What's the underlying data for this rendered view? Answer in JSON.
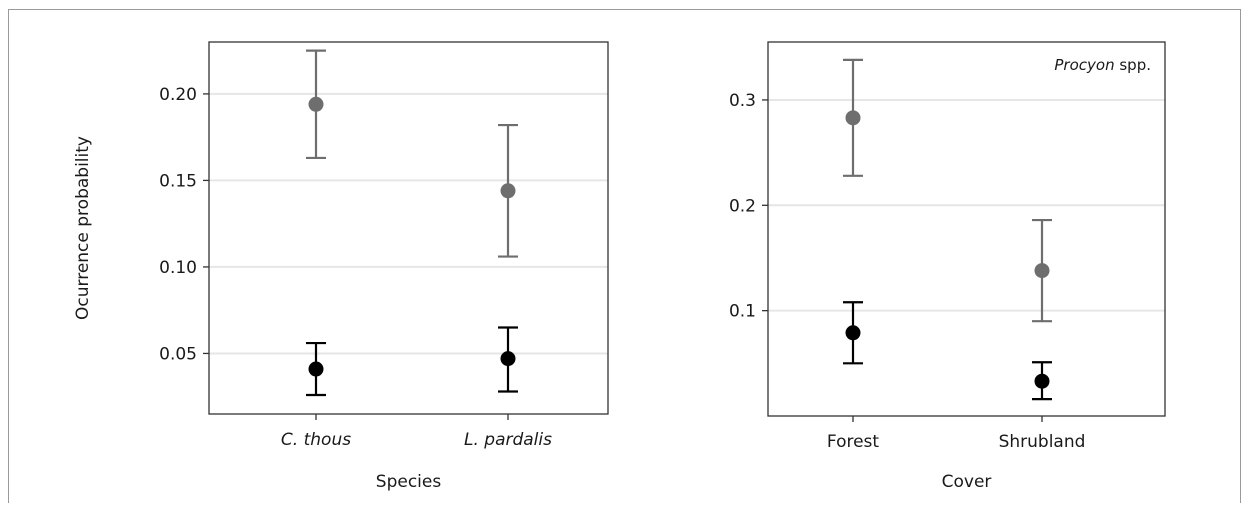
{
  "chart_data": [
    {
      "type": "scatter",
      "subtype": "point-with-error-bars",
      "title": "",
      "xlabel": "Species",
      "ylabel": "Ocurrence probability",
      "categories": [
        "C. thous",
        "L. pardalis"
      ],
      "categories_italic": true,
      "ylim": [
        0.015,
        0.23
      ],
      "yticks": [
        0.05,
        0.1,
        0.15,
        0.2
      ],
      "ytick_labels": [
        "0.05",
        "0.10",
        "0.15",
        "0.20"
      ],
      "grid": true,
      "annotation": null,
      "series": [
        {
          "color": "#6e6e6e",
          "values": [
            0.194,
            0.144
          ],
          "lower": [
            0.163,
            0.106
          ],
          "upper": [
            0.225,
            0.182
          ]
        },
        {
          "color": "#000000",
          "values": [
            0.041,
            0.047
          ],
          "lower": [
            0.026,
            0.028
          ],
          "upper": [
            0.056,
            0.065
          ]
        }
      ]
    },
    {
      "type": "scatter",
      "subtype": "point-with-error-bars",
      "title": "",
      "xlabel": "Cover",
      "ylabel": "",
      "categories": [
        "Forest",
        "Shrubland"
      ],
      "categories_italic": false,
      "ylim": [
        0.0,
        0.355
      ],
      "yticks": [
        0.1,
        0.2,
        0.3
      ],
      "ytick_labels": [
        "0.1",
        "0.2",
        "0.3"
      ],
      "grid": true,
      "annotation": {
        "italic_part": "Procyon",
        "rest": " spp.",
        "position": "top-right"
      },
      "series": [
        {
          "color": "#6e6e6e",
          "values": [
            0.283,
            0.138
          ],
          "lower": [
            0.228,
            0.09
          ],
          "upper": [
            0.338,
            0.186
          ]
        },
        {
          "color": "#000000",
          "values": [
            0.079,
            0.033
          ],
          "lower": [
            0.05,
            0.016
          ],
          "upper": [
            0.108,
            0.051
          ]
        }
      ]
    }
  ]
}
